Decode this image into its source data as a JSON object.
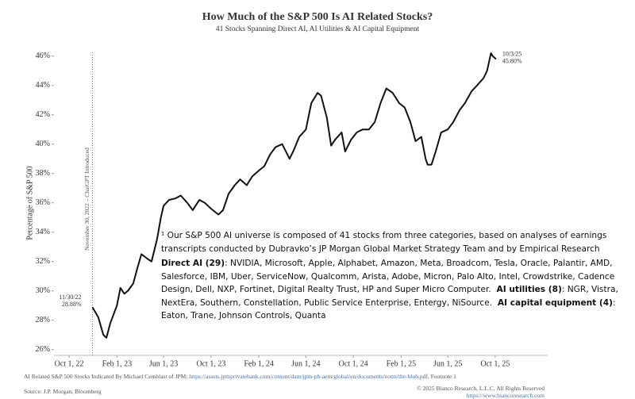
{
  "chart_data": {
    "type": "line",
    "title": "How Much of the S&P 500 Is AI Related Stocks?",
    "subtitle": "41 Stocks Spanning Direct AI, AI Utilities & AI Capital Equipment",
    "y_label": "Percentage of S&P 500",
    "xlim": [
      "2022-08-23",
      "2026-02-13"
    ],
    "xticks": [
      {
        "value": "2022-10-01",
        "label": "Oct 1, 22"
      },
      {
        "value": "2023-02-01",
        "label": "Feb 1, 23"
      },
      {
        "value": "2023-06-01",
        "label": "Jun 1, 23"
      },
      {
        "value": "2023-10-01",
        "label": "Oct 1, 23"
      },
      {
        "value": "2024-02-01",
        "label": "Feb 1, 24"
      },
      {
        "value": "2024-06-01",
        "label": "Jun 1, 24"
      },
      {
        "value": "2024-10-01",
        "label": "Oct 1, 24"
      },
      {
        "value": "2025-02-01",
        "label": "Feb 1, 25"
      },
      {
        "value": "2025-06-01",
        "label": "Jun 1, 25"
      },
      {
        "value": "2025-10-01",
        "label": "Oct 1, 25"
      }
    ],
    "ylim": [
      25.6,
      46.8
    ],
    "yticks": [
      {
        "value": 26,
        "label": "26%"
      },
      {
        "value": 28,
        "label": "28%"
      },
      {
        "value": 30,
        "label": "30%"
      },
      {
        "value": 32,
        "label": "32%"
      },
      {
        "value": 34,
        "label": "34%"
      },
      {
        "value": 36,
        "label": "36%"
      },
      {
        "value": 38,
        "label": "38%"
      },
      {
        "value": 40,
        "label": "40%"
      },
      {
        "value": 42,
        "label": "42%"
      },
      {
        "value": 44,
        "label": "44%"
      },
      {
        "value": 46,
        "label": "46%"
      }
    ],
    "series": [
      {
        "color": "#111111",
        "x": [
          "2022-11-30",
          "2022-12-15",
          "2022-12-28",
          "2023-01-05",
          "2023-01-15",
          "2023-02-01",
          "2023-02-10",
          "2023-02-20",
          "2023-03-01",
          "2023-03-15",
          "2023-03-25",
          "2023-04-05",
          "2023-04-20",
          "2023-05-01",
          "2023-05-15",
          "2023-05-25",
          "2023-06-01",
          "2023-06-15",
          "2023-07-01",
          "2023-07-15",
          "2023-08-01",
          "2023-08-15",
          "2023-09-01",
          "2023-09-15",
          "2023-10-01",
          "2023-10-20",
          "2023-11-01",
          "2023-11-15",
          "2023-12-01",
          "2023-12-15",
          "2024-01-01",
          "2024-01-15",
          "2024-02-01",
          "2024-02-15",
          "2024-03-01",
          "2024-03-15",
          "2024-04-01",
          "2024-04-20",
          "2024-05-01",
          "2024-05-15",
          "2024-06-01",
          "2024-06-15",
          "2024-07-01",
          "2024-07-10",
          "2024-07-25",
          "2024-08-05",
          "2024-08-15",
          "2024-09-01",
          "2024-09-10",
          "2024-09-25",
          "2024-10-10",
          "2024-10-25",
          "2024-11-10",
          "2024-11-25",
          "2024-12-10",
          "2024-12-25",
          "2025-01-10",
          "2025-01-27",
          "2025-02-10",
          "2025-02-25",
          "2025-03-10",
          "2025-03-25",
          "2025-04-05",
          "2025-04-10",
          "2025-04-20",
          "2025-05-01",
          "2025-05-15",
          "2025-06-01",
          "2025-06-15",
          "2025-07-01",
          "2025-07-15",
          "2025-08-01",
          "2025-08-15",
          "2025-09-01",
          "2025-09-10",
          "2025-09-20",
          "2025-09-25",
          "2025-10-03"
        ],
        "values": [
          28.88,
          28.2,
          27.0,
          26.8,
          27.8,
          29.0,
          30.2,
          29.8,
          30.0,
          30.5,
          31.5,
          32.5,
          32.2,
          32.0,
          33.5,
          35.0,
          35.8,
          36.2,
          36.3,
          36.5,
          36.0,
          35.5,
          36.2,
          36.0,
          35.6,
          35.2,
          35.5,
          36.6,
          37.2,
          37.6,
          37.2,
          37.8,
          38.2,
          38.5,
          39.3,
          39.8,
          40.0,
          39.0,
          39.6,
          40.5,
          41.0,
          42.8,
          43.5,
          43.3,
          41.8,
          39.9,
          40.3,
          40.8,
          39.5,
          40.3,
          40.8,
          41.0,
          41.0,
          41.5,
          42.8,
          43.8,
          43.5,
          42.8,
          42.5,
          41.5,
          40.2,
          40.5,
          39.0,
          38.6,
          38.6,
          39.5,
          40.8,
          41.0,
          41.5,
          42.3,
          42.8,
          43.6,
          44.0,
          44.5,
          45.0,
          46.2,
          46.0,
          45.8
        ]
      }
    ],
    "annotations": [
      {
        "x": "2022-11-30",
        "label": "November 30, 2022 – ChatGPT Introduced"
      },
      {
        "x": "2022-11-30",
        "label": "11/30/22",
        "value_label": "28.88%"
      },
      {
        "x": "2025-10-03",
        "label": "10/3/25",
        "value_label": "45.80%"
      }
    ],
    "note": {
      "intro": "¹ Our S&P 500 AI universe is composed of 41 stocks from three categories, based on analyses of earnings transcripts conducted by Dubravko’s JP Morgan Global Market Strategy Team and by Empirical Research",
      "groups": [
        {
          "label": "Direct AI (29)",
          "text": ": NVIDIA, Microsoft, Apple, Alphabet, Amazon, Meta, Broadcom, Tesla, Oracle, Palantir, AMD, Salesforce, IBM, Uber, ServiceNow, Qualcomm, Arista, Adobe, Micron, Palo Alto, Intel, Crowdstrike, Cadence Design, Dell, NXP, Fortinet, Digital Realty Trust, HP and Super Micro Computer."
        },
        {
          "label": "AI utilities (8)",
          "text": ": NGR, Vistra, NextEra, Southern, Constellation, Public Service Enterprise, Entergy, NiSource."
        },
        {
          "label": "AI capital equipment (4)",
          "text": ": Eaton, Trane, Johnson Controls, Quanta"
        }
      ]
    },
    "footer": {
      "credit": "AI Related S&P 500 Stocks Indicated By Michael Cemblast of JPM: ",
      "link": "https://assets.jpmprivatebank.com/content/dam/jpm-pb-aem/global/en/documents/eotm/the-blob.pdf",
      "credit_end": ", Footnote 1",
      "source": "Source: J.P. Morgan, Bloomberg",
      "copyright": "© 2025 Bianco Research, L.L.C. All Rights Reserved",
      "url": "https://www.biancoresearch.com"
    }
  }
}
